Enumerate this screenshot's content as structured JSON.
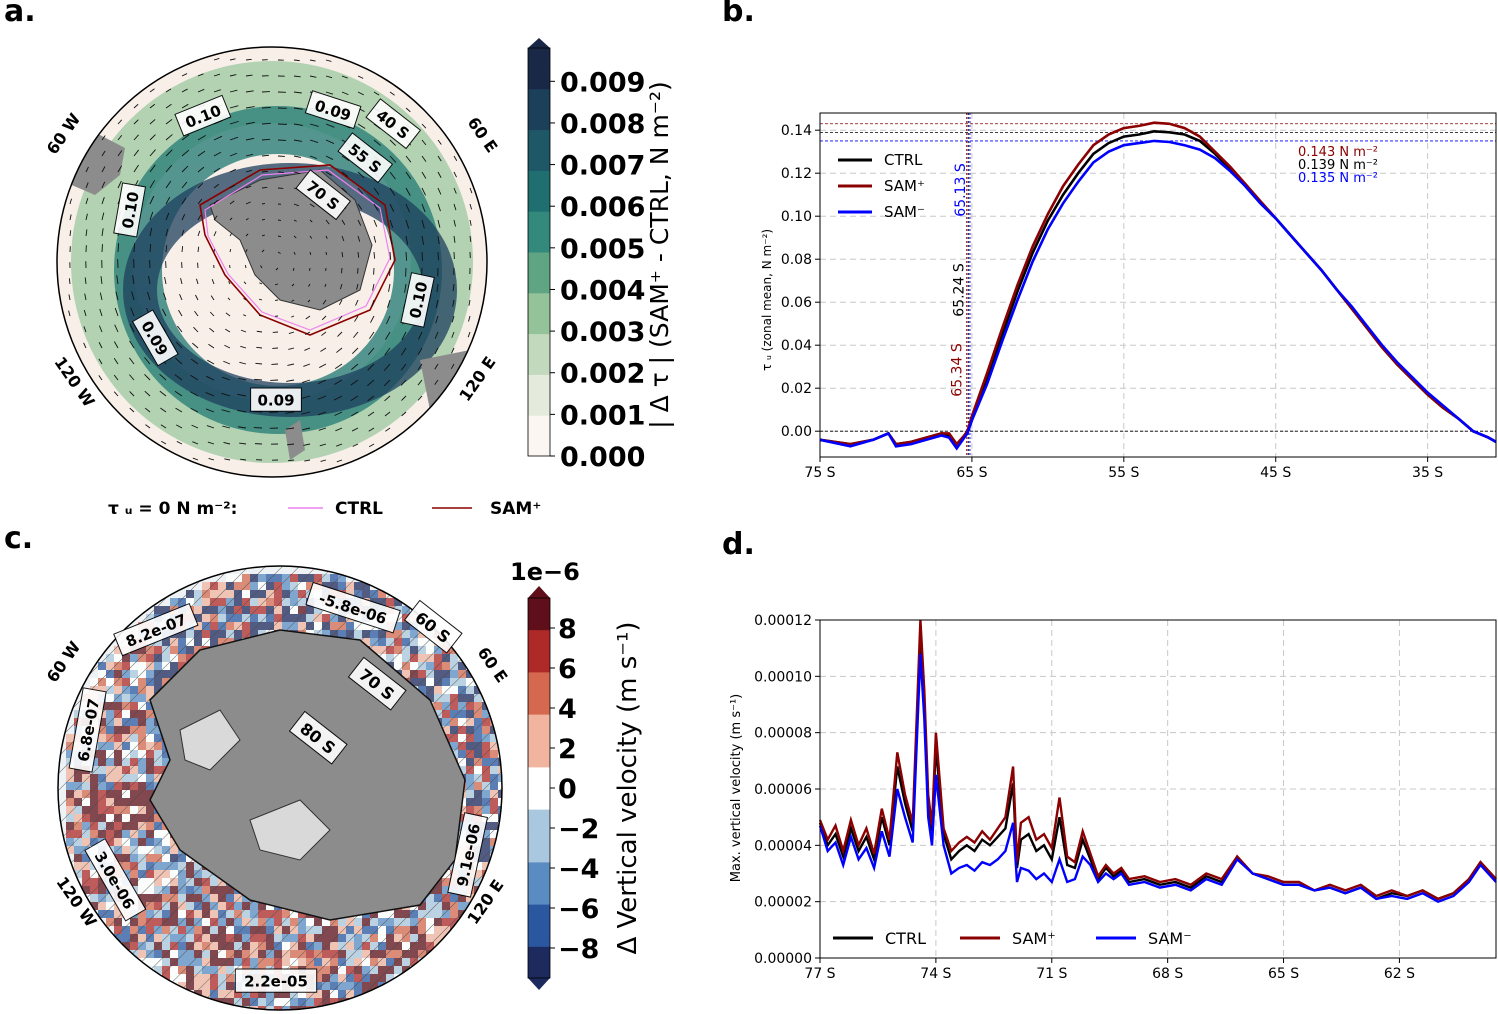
{
  "panels": {
    "a": "a.",
    "b": "b.",
    "c": "c.",
    "d": "d."
  },
  "colors": {
    "ctrl": "#000000",
    "sam_plus": "#8b0000",
    "sam_minus": "#0000ff",
    "land": "#8c8c8c",
    "ice_shelf": "#d9d9d9"
  },
  "panel_a": {
    "colorbar_label": "| Δ τ | (SAM⁺ - CTRL, N m⁻²)",
    "colorbar_ticks": [
      "0.000",
      "0.001",
      "0.002",
      "0.003",
      "0.004",
      "0.005",
      "0.006",
      "0.007",
      "0.008",
      "0.009"
    ],
    "colormap": [
      "#fbf6f2",
      "#e4ebdd",
      "#c2d9bd",
      "#94c39a",
      "#5fa483",
      "#338a7c",
      "#1f6f71",
      "#1e5766",
      "#1c3f5a",
      "#1a2848"
    ],
    "lon_labels": [
      "60 W",
      "60 E",
      "120 W",
      "120 E"
    ],
    "lat_labels": [
      "40 S",
      "55 S",
      "70 S"
    ],
    "contour_labels": [
      "0.10",
      "0.09",
      "0.10",
      "0.10",
      "0.09",
      "0.09"
    ],
    "legend": {
      "prefix": "τ ᵤ = 0  N m⁻²:",
      "ctrl": "CTRL",
      "sam_plus": "SAM⁺"
    },
    "legend_colors": {
      "ctrl": "#ee82ee",
      "sam_plus": "#8b0000"
    }
  },
  "panel_c": {
    "colorbar_label": "Δ Vertical velocity (m s⁻¹)",
    "colorbar_scale": "1e−6",
    "colorbar_ticks": [
      "−8",
      "−6",
      "−4",
      "−2",
      "0",
      "2",
      "4",
      "6",
      "8"
    ],
    "colormap": [
      "#1d2a5e",
      "#2a57a0",
      "#5a8cc2",
      "#a9c7de",
      "#ffffff",
      "#f0b49f",
      "#d4694f",
      "#ad2a28",
      "#5e0f1a"
    ],
    "lon_labels": [
      "60 W",
      "60 E",
      "120 W",
      "120 E"
    ],
    "lat_labels": [
      "60 S",
      "70 S",
      "80 S"
    ],
    "contour_labels": [
      "8.2e-07",
      "-5.8e-06",
      "6.8e-07",
      "3.0e-06",
      "9.1e-06",
      "2.2e-05"
    ]
  },
  "chart_data": [
    {
      "panel": "b",
      "type": "line",
      "ylabel": "τ ᵤ (zonal mean, N m⁻²)",
      "x_ticks": [
        "75 S",
        "65 S",
        "55 S",
        "45 S",
        "35 S"
      ],
      "x_tick_values": [
        -75,
        -65,
        -55,
        -45,
        -35
      ],
      "xlim": [
        -75,
        -30.5
      ],
      "ylim": [
        -0.012,
        0.148
      ],
      "y_ticks": [
        "0.00",
        "0.02",
        "0.04",
        "0.06",
        "0.08",
        "0.10",
        "0.12",
        "0.14"
      ],
      "grid": true,
      "legend_position": "upper-left",
      "series": [
        {
          "name": "CTRL",
          "color": "#000000",
          "x": [
            -75,
            -73,
            -71.5,
            -70.5,
            -70,
            -69,
            -68,
            -67,
            -66.5,
            -66,
            -65.5,
            -65.3,
            -65,
            -64,
            -63,
            -62,
            -61,
            -60,
            -59,
            -58,
            -57,
            -56,
            -55,
            -54,
            -53,
            -52,
            -51,
            -50,
            -49,
            -48,
            -47,
            -46,
            -45,
            -44,
            -43,
            -42,
            -41,
            -40,
            -39,
            -38,
            -37,
            -36,
            -35,
            -34,
            -33,
            -32,
            -31,
            -30.5
          ],
          "y": [
            -0.004,
            -0.006,
            -0.004,
            -0.001,
            -0.006,
            -0.005,
            -0.003,
            -0.001,
            -0.002,
            -0.007,
            -0.002,
            0.0,
            0.006,
            0.025,
            0.045,
            0.065,
            0.083,
            0.098,
            0.11,
            0.12,
            0.129,
            0.134,
            0.137,
            0.138,
            0.1395,
            0.139,
            0.138,
            0.135,
            0.129,
            0.122,
            0.114,
            0.106,
            0.099,
            0.091,
            0.083,
            0.075,
            0.066,
            0.057,
            0.048,
            0.039,
            0.031,
            0.024,
            0.017,
            0.011,
            0.006,
            0.0,
            -0.003,
            -0.005
          ]
        },
        {
          "name": "SAM⁺",
          "color": "#8b0000",
          "x": [
            -75,
            -73,
            -71.5,
            -70.5,
            -70,
            -69,
            -68,
            -67,
            -66.5,
            -66,
            -65.5,
            -65.3,
            -65,
            -64,
            -63,
            -62,
            -61,
            -60,
            -59,
            -58,
            -57,
            -56,
            -55,
            -54,
            -53,
            -52,
            -51,
            -50,
            -49,
            -48,
            -47,
            -46,
            -45,
            -44,
            -43,
            -42,
            -41,
            -40,
            -39,
            -38,
            -37,
            -36,
            -35,
            -34,
            -33,
            -32,
            -31,
            -30.5
          ],
          "y": [
            -0.004,
            -0.006,
            -0.004,
            -0.001,
            -0.006,
            -0.005,
            -0.003,
            -0.001,
            -0.001,
            -0.006,
            -0.002,
            0.0,
            0.007,
            0.027,
            0.048,
            0.068,
            0.086,
            0.101,
            0.114,
            0.124,
            0.133,
            0.138,
            0.141,
            0.142,
            0.1435,
            0.143,
            0.141,
            0.137,
            0.13,
            0.123,
            0.115,
            0.107,
            0.099,
            0.091,
            0.083,
            0.075,
            0.066,
            0.057,
            0.048,
            0.039,
            0.031,
            0.024,
            0.017,
            0.011,
            0.006,
            0.0,
            -0.003,
            -0.005
          ]
        },
        {
          "name": "SAM⁻",
          "color": "#0000ff",
          "x": [
            -75,
            -73,
            -71.5,
            -70.5,
            -70,
            -69,
            -68,
            -67,
            -66.5,
            -66,
            -65.5,
            -65.3,
            -65,
            -64,
            -63,
            -62,
            -61,
            -60,
            -59,
            -58,
            -57,
            -56,
            -55,
            -54,
            -53,
            -52,
            -51,
            -50,
            -49,
            -48,
            -47,
            -46,
            -45,
            -44,
            -43,
            -42,
            -41,
            -40,
            -39,
            -38,
            -37,
            -36,
            -35,
            -34,
            -33,
            -32,
            -31,
            -30.5
          ],
          "y": [
            -0.004,
            -0.007,
            -0.004,
            -0.001,
            -0.007,
            -0.006,
            -0.004,
            -0.002,
            -0.003,
            -0.008,
            -0.003,
            -0.001,
            0.005,
            0.022,
            0.042,
            0.061,
            0.079,
            0.094,
            0.106,
            0.116,
            0.125,
            0.13,
            0.133,
            0.134,
            0.135,
            0.1345,
            0.133,
            0.131,
            0.127,
            0.121,
            0.114,
            0.106,
            0.099,
            0.091,
            0.083,
            0.075,
            0.066,
            0.058,
            0.049,
            0.04,
            0.032,
            0.025,
            0.018,
            0.012,
            0.006,
            0.0,
            -0.003,
            -0.005
          ]
        }
      ],
      "annotations": {
        "zero_crossings": [
          {
            "text": "65.13 S",
            "x": -65.13,
            "color": "#0000ff"
          },
          {
            "text": "65.24 S",
            "x": -65.24,
            "color": "#000000"
          },
          {
            "text": "65.34 S",
            "x": -65.34,
            "color": "#8b0000"
          }
        ],
        "maxima": [
          {
            "text": "0.143 N m⁻²",
            "y": 0.143,
            "color": "#8b0000"
          },
          {
            "text": "0.139 N m⁻²",
            "y": 0.139,
            "color": "#000000"
          },
          {
            "text": "0.135 N m⁻²",
            "y": 0.135,
            "color": "#0000ff"
          }
        ]
      }
    },
    {
      "panel": "d",
      "type": "line",
      "ylabel": "Max. vertical velocity (m s⁻¹)",
      "x_ticks": [
        "77 S",
        "74 S",
        "71 S",
        "68 S",
        "65 S",
        "62 S"
      ],
      "x_tick_values": [
        -77,
        -74,
        -71,
        -68,
        -65,
        -62
      ],
      "xlim": [
        -77,
        -59.5
      ],
      "ylim": [
        0,
        0.00012
      ],
      "y_ticks": [
        "0.00000",
        "0.00002",
        "0.00004",
        "0.00006",
        "0.00008",
        "0.00010",
        "0.00012"
      ],
      "grid": true,
      "legend_position": "lower-left",
      "series": [
        {
          "name": "CTRL",
          "color": "#000000",
          "x": [
            -77,
            -76.8,
            -76.6,
            -76.4,
            -76.2,
            -76,
            -75.8,
            -75.6,
            -75.4,
            -75.2,
            -75,
            -74.8,
            -74.6,
            -74.4,
            -74.3,
            -74.2,
            -74.1,
            -74,
            -73.8,
            -73.6,
            -73.4,
            -73.2,
            -73,
            -72.8,
            -72.6,
            -72.4,
            -72.2,
            -72,
            -71.9,
            -71.8,
            -71.6,
            -71.4,
            -71.2,
            -71,
            -70.8,
            -70.6,
            -70.4,
            -70.2,
            -70,
            -69.8,
            -69.6,
            -69.4,
            -69.2,
            -69,
            -68.6,
            -68.2,
            -67.8,
            -67.4,
            -67,
            -66.6,
            -66.2,
            -65.8,
            -65.4,
            -65,
            -64.6,
            -64.2,
            -63.8,
            -63.4,
            -63,
            -62.6,
            -62.2,
            -61.8,
            -61.4,
            -61,
            -60.6,
            -60.2,
            -59.9,
            -59.5
          ],
          "y": [
            4.8e-05,
            4e-05,
            4.4e-05,
            3.6e-05,
            4.6e-05,
            3.8e-05,
            4.3e-05,
            3.5e-05,
            5e-05,
            4e-05,
            6.8e-05,
            5.5e-05,
            4.5e-05,
            0.000112,
            9e-05,
            5.5e-05,
            4.5e-05,
            7.5e-05,
            4.4e-05,
            3.5e-05,
            3.8e-05,
            4e-05,
            3.8e-05,
            4.2e-05,
            4e-05,
            4.3e-05,
            4.6e-05,
            6.2e-05,
            3.2e-05,
            4.2e-05,
            4.4e-05,
            3.8e-05,
            4e-05,
            3.5e-05,
            5e-05,
            3.3e-05,
            3.2e-05,
            4.2e-05,
            3.5e-05,
            2.8e-05,
            3.2e-05,
            2.9e-05,
            3.1e-05,
            2.7e-05,
            2.8e-05,
            2.6e-05,
            2.7e-05,
            2.5e-05,
            2.9e-05,
            2.7e-05,
            3.6e-05,
            3e-05,
            2.8e-05,
            2.6e-05,
            2.6e-05,
            2.4e-05,
            2.5e-05,
            2.3e-05,
            2.5e-05,
            2.1e-05,
            2.3e-05,
            2.2e-05,
            2.4e-05,
            2.1e-05,
            2.3e-05,
            2.8e-05,
            3.4e-05,
            2.8e-05
          ]
        },
        {
          "name": "SAM⁺",
          "color": "#8b0000",
          "x": [
            -77,
            -76.8,
            -76.6,
            -76.4,
            -76.2,
            -76,
            -75.8,
            -75.6,
            -75.4,
            -75.2,
            -75,
            -74.8,
            -74.6,
            -74.4,
            -74.3,
            -74.2,
            -74.1,
            -74,
            -73.8,
            -73.6,
            -73.4,
            -73.2,
            -73,
            -72.8,
            -72.6,
            -72.4,
            -72.2,
            -72,
            -71.9,
            -71.8,
            -71.6,
            -71.4,
            -71.2,
            -71,
            -70.8,
            -70.6,
            -70.4,
            -70.2,
            -70,
            -69.8,
            -69.6,
            -69.4,
            -69.2,
            -69,
            -68.6,
            -68.2,
            -67.8,
            -67.4,
            -67,
            -66.6,
            -66.2,
            -65.8,
            -65.4,
            -65,
            -64.6,
            -64.2,
            -63.8,
            -63.4,
            -63,
            -62.6,
            -62.2,
            -61.8,
            -61.4,
            -61,
            -60.6,
            -60.2,
            -59.9,
            -59.5
          ],
          "y": [
            4.9e-05,
            4.2e-05,
            4.7e-05,
            3.8e-05,
            4.9e-05,
            4e-05,
            4.6e-05,
            3.7e-05,
            5.3e-05,
            4.2e-05,
            7.3e-05,
            5.8e-05,
            4.8e-05,
            0.00012,
            9.5e-05,
            5.8e-05,
            4.7e-05,
            8e-05,
            4.6e-05,
            3.8e-05,
            4.1e-05,
            4.3e-05,
            4.1e-05,
            4.5e-05,
            4.2e-05,
            4.6e-05,
            5e-05,
            6.8e-05,
            3.4e-05,
            4.8e-05,
            5e-05,
            4.2e-05,
            4.4e-05,
            3.9e-05,
            5.7e-05,
            3.6e-05,
            3.4e-05,
            4.5e-05,
            3.7e-05,
            2.9e-05,
            3.3e-05,
            3e-05,
            3.2e-05,
            2.8e-05,
            2.9e-05,
            2.7e-05,
            2.8e-05,
            2.6e-05,
            3e-05,
            2.8e-05,
            3.6e-05,
            3e-05,
            2.9e-05,
            2.7e-05,
            2.7e-05,
            2.4e-05,
            2.6e-05,
            2.4e-05,
            2.6e-05,
            2.2e-05,
            2.4e-05,
            2.2e-05,
            2.4e-05,
            2.1e-05,
            2.3e-05,
            2.8e-05,
            3.4e-05,
            2.8e-05
          ]
        },
        {
          "name": "SAM⁻",
          "color": "#0000ff",
          "x": [
            -77,
            -76.8,
            -76.6,
            -76.4,
            -76.2,
            -76,
            -75.8,
            -75.6,
            -75.4,
            -75.2,
            -75,
            -74.8,
            -74.6,
            -74.4,
            -74.3,
            -74.2,
            -74.1,
            -74,
            -73.8,
            -73.6,
            -73.4,
            -73.2,
            -73,
            -72.8,
            -72.6,
            -72.4,
            -72.2,
            -72,
            -71.9,
            -71.8,
            -71.6,
            -71.4,
            -71.2,
            -71,
            -70.8,
            -70.6,
            -70.4,
            -70.2,
            -70,
            -69.8,
            -69.6,
            -69.4,
            -69.2,
            -69,
            -68.6,
            -68.2,
            -67.8,
            -67.4,
            -67,
            -66.6,
            -66.2,
            -65.8,
            -65.4,
            -65,
            -64.6,
            -64.2,
            -63.8,
            -63.4,
            -63,
            -62.6,
            -62.2,
            -61.8,
            -61.4,
            -61,
            -60.6,
            -60.2,
            -59.9,
            -59.5
          ],
          "y": [
            4.7e-05,
            3.8e-05,
            4.1e-05,
            3.3e-05,
            4.3e-05,
            3.5e-05,
            3.9e-05,
            3.2e-05,
            4.5e-05,
            3.6e-05,
            6e-05,
            5e-05,
            4.1e-05,
            0.000108,
            8.5e-05,
            5e-05,
            4e-05,
            6.5e-05,
            4e-05,
            3e-05,
            3.2e-05,
            3.3e-05,
            3.1e-05,
            3.4e-05,
            3.3e-05,
            3.5e-05,
            3.8e-05,
            4.8e-05,
            2.7e-05,
            3.2e-05,
            3.1e-05,
            2.8e-05,
            3e-05,
            2.7e-05,
            3.5e-05,
            2.7e-05,
            2.8e-05,
            3.6e-05,
            3.3e-05,
            2.7e-05,
            3e-05,
            2.8e-05,
            3e-05,
            2.6e-05,
            2.7e-05,
            2.5e-05,
            2.6e-05,
            2.4e-05,
            2.8e-05,
            2.6e-05,
            3.5e-05,
            3e-05,
            2.8e-05,
            2.6e-05,
            2.6e-05,
            2.4e-05,
            2.5e-05,
            2.3e-05,
            2.5e-05,
            2.1e-05,
            2.2e-05,
            2.1e-05,
            2.3e-05,
            2e-05,
            2.2e-05,
            2.7e-05,
            3.3e-05,
            2.7e-05
          ]
        }
      ]
    }
  ]
}
